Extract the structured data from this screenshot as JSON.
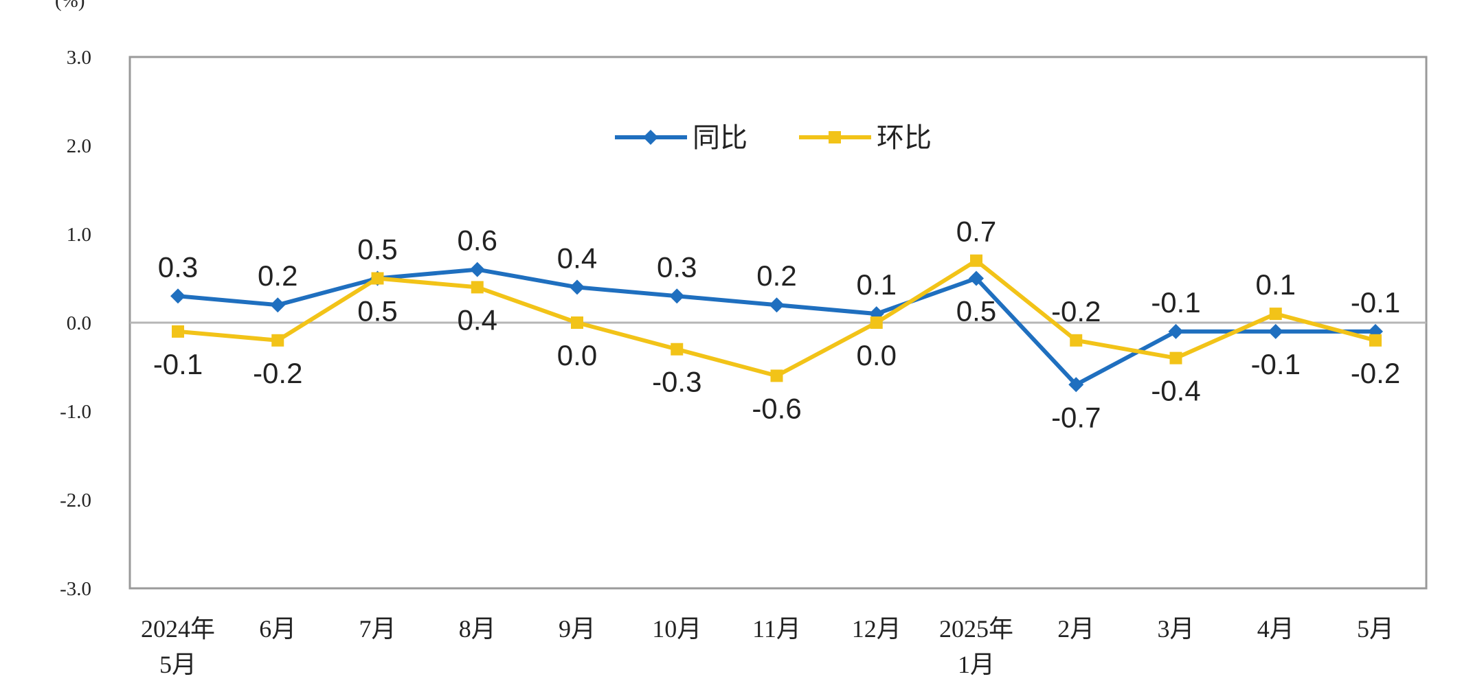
{
  "chart_data": {
    "type": "line",
    "ylabel": "(%)",
    "ylim": [
      -3.0,
      3.0
    ],
    "yticks": [
      "3.0",
      "2.0",
      "1.0",
      "0.0",
      "-1.0",
      "-2.0",
      "-3.0"
    ],
    "categories": [
      [
        "2024年",
        "5月"
      ],
      [
        "6月"
      ],
      [
        "7月"
      ],
      [
        "8月"
      ],
      [
        "9月"
      ],
      [
        "10月"
      ],
      [
        "11月"
      ],
      [
        "12月"
      ],
      [
        "2025年",
        "1月"
      ],
      [
        "2月"
      ],
      [
        "3月"
      ],
      [
        "4月"
      ],
      [
        "5月"
      ]
    ],
    "legend_position": "top-center",
    "grid": false,
    "series": [
      {
        "name": "同比",
        "color": "#1f6fbf",
        "marker": "diamond",
        "values": [
          0.3,
          0.2,
          0.5,
          0.6,
          0.4,
          0.3,
          0.2,
          0.1,
          0.5,
          -0.7,
          -0.1,
          -0.1,
          -0.1
        ]
      },
      {
        "name": "环比",
        "color": "#f2c318",
        "marker": "square",
        "values": [
          -0.1,
          -0.2,
          0.5,
          0.4,
          0.0,
          -0.3,
          -0.6,
          0.0,
          0.7,
          -0.2,
          -0.4,
          0.1,
          -0.2
        ]
      }
    ]
  }
}
